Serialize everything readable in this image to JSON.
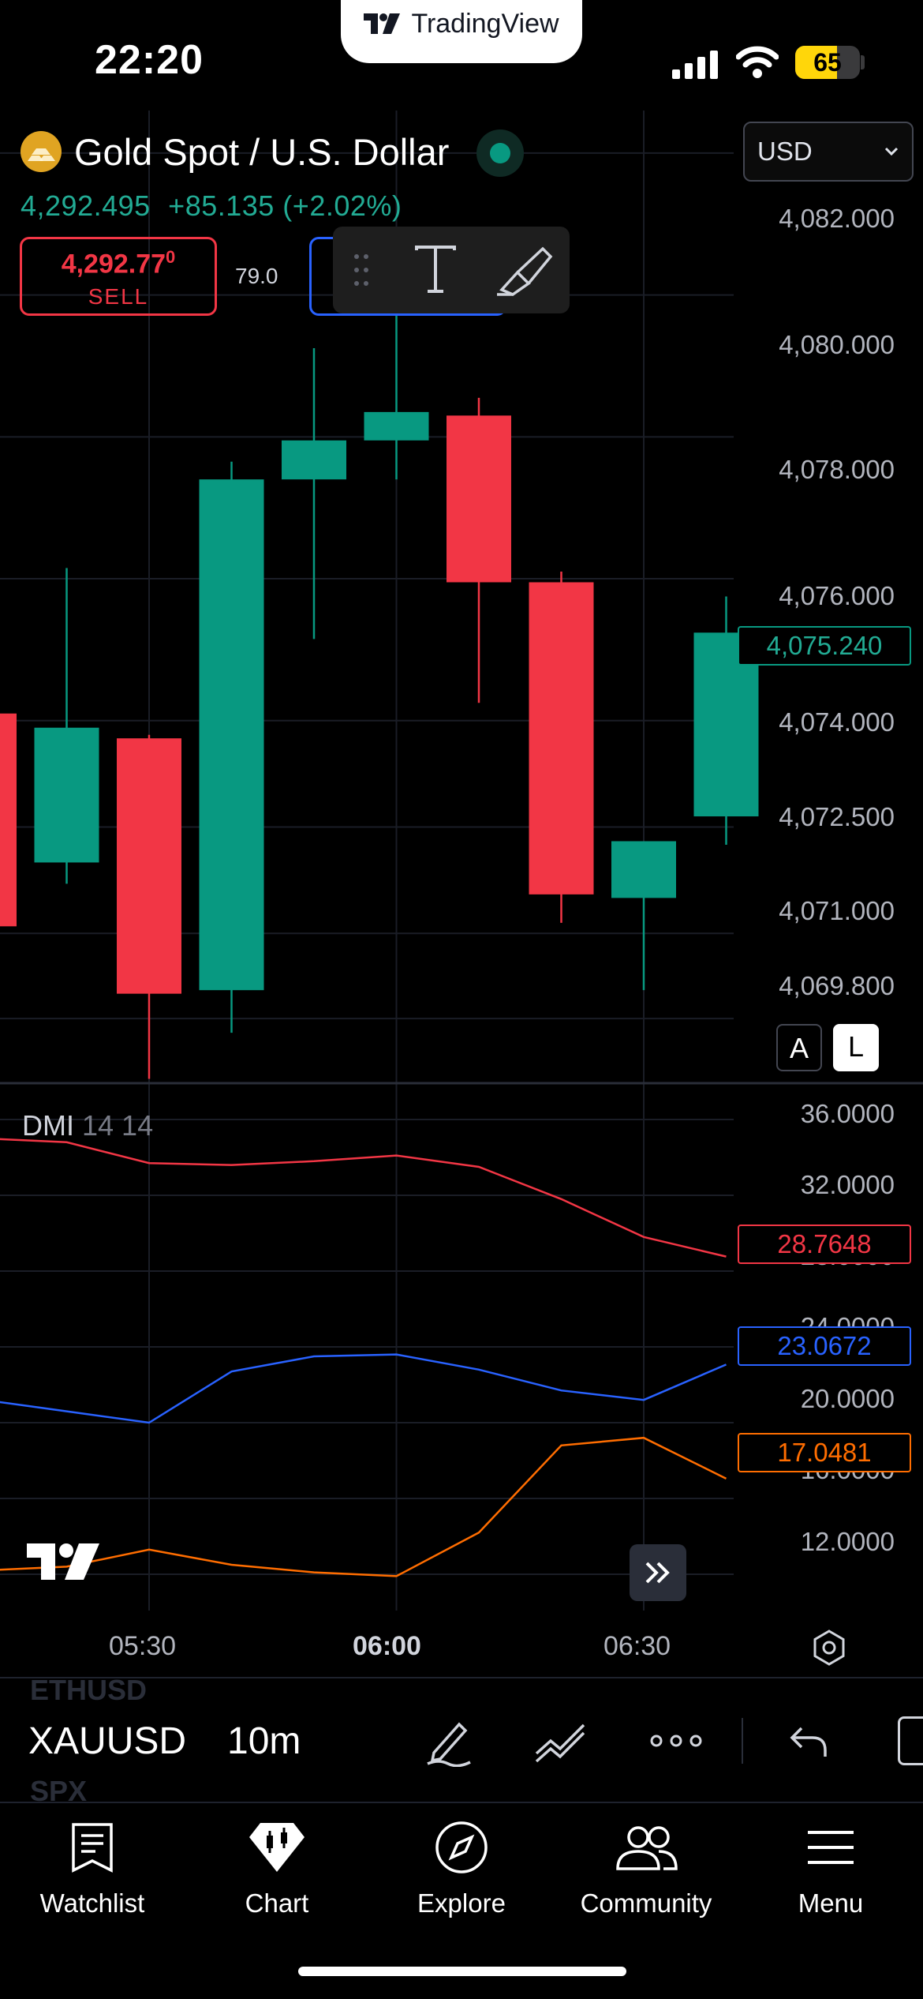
{
  "status_bar": {
    "time": "22:20",
    "brand": "TradingView",
    "battery_level": "65",
    "battery_fraction": 0.65
  },
  "header": {
    "symbol_name": "Gold Spot / U.S. Dollar",
    "last_price": "4,292.495",
    "change": "+85.135 (+2.02%)",
    "sell_price": "4,292.77",
    "sell_price_superscript": "0",
    "sell_label": "SELL",
    "spread": "79.0",
    "currency": "USD",
    "live_color": "#089981"
  },
  "colors": {
    "up": "#089981",
    "down": "#f23645",
    "di_plus": "#2962ff",
    "di_minus": "#f23645",
    "adx": "#ff6d00",
    "background": "#000000"
  },
  "price_axis": {
    "ticks": [
      "4,082.000",
      "4,080.000",
      "4,078.000",
      "4,076.000",
      "4,074.000",
      "4,072.500",
      "4,071.000",
      "4,069.800"
    ],
    "current_price": "4,075.240",
    "scale_buttons": [
      "A",
      "L"
    ]
  },
  "indicator": {
    "name": "DMI",
    "params": "14 14",
    "axis_ticks": [
      "36.0000",
      "32.0000",
      "28.0000",
      "24.0000",
      "20.0000",
      "16.0000",
      "12.0000"
    ],
    "minus_value": "28.7648",
    "plus_value": "23.0672",
    "adx_value": "17.0481"
  },
  "time_axis": {
    "labels": [
      "05:30",
      "06:00",
      "06:30"
    ]
  },
  "chart_data": [
    {
      "type": "candlestick",
      "interval": "10m",
      "candles": [
        {
          "o": 4074.1,
          "h": 4074.1,
          "l": 4071.1,
          "c": 4071.1
        },
        {
          "o": 4072.0,
          "h": 4076.15,
          "l": 4071.7,
          "c": 4073.9
        },
        {
          "o": 4073.75,
          "h": 4073.8,
          "l": 4068.95,
          "c": 4070.15
        },
        {
          "o": 4070.2,
          "h": 4077.65,
          "l": 4069.6,
          "c": 4077.4
        },
        {
          "o": 4077.4,
          "h": 4079.25,
          "l": 4075.15,
          "c": 4077.95
        },
        {
          "o": 4077.95,
          "h": 4079.85,
          "l": 4077.4,
          "c": 4078.35
        },
        {
          "o": 4078.3,
          "h": 4078.55,
          "l": 4074.25,
          "c": 4075.95
        },
        {
          "o": 4075.95,
          "h": 4076.1,
          "l": 4071.15,
          "c": 4071.55
        },
        {
          "o": 4071.5,
          "h": 4072.3,
          "l": 4070.2,
          "c": 4072.3
        },
        {
          "o": 4072.65,
          "h": 4075.75,
          "l": 4072.25,
          "c": 4075.24
        }
      ],
      "ylim": [
        4069.0,
        4082.6
      ]
    },
    {
      "type": "line",
      "title": "DMI",
      "series": [
        {
          "name": "-DI",
          "values": [
            35.0,
            34.8,
            33.7,
            33.6,
            33.8,
            34.1,
            33.5,
            31.8,
            29.8,
            28.7648
          ]
        },
        {
          "name": "+DI",
          "values": [
            21.2,
            20.6,
            20.0,
            22.7,
            23.5,
            23.6,
            22.8,
            21.7,
            21.2,
            23.0672
          ]
        },
        {
          "name": "ADX",
          "values": [
            12.2,
            12.4,
            13.3,
            12.5,
            12.1,
            11.9,
            14.2,
            18.8,
            19.2,
            17.0481
          ]
        }
      ],
      "ylim": [
        10.5,
        37.5
      ]
    }
  ],
  "bottom_bar": {
    "prev_symbol": "ETHUSD",
    "symbol": "XAUUSD",
    "next_symbol": "SPX",
    "interval": "10m"
  },
  "tabs": [
    {
      "label": "Watchlist",
      "icon": "watchlist-icon"
    },
    {
      "label": "Chart",
      "icon": "chart-icon"
    },
    {
      "label": "Explore",
      "icon": "compass-icon"
    },
    {
      "label": "Community",
      "icon": "community-icon"
    },
    {
      "label": "Menu",
      "icon": "menu-icon"
    }
  ]
}
